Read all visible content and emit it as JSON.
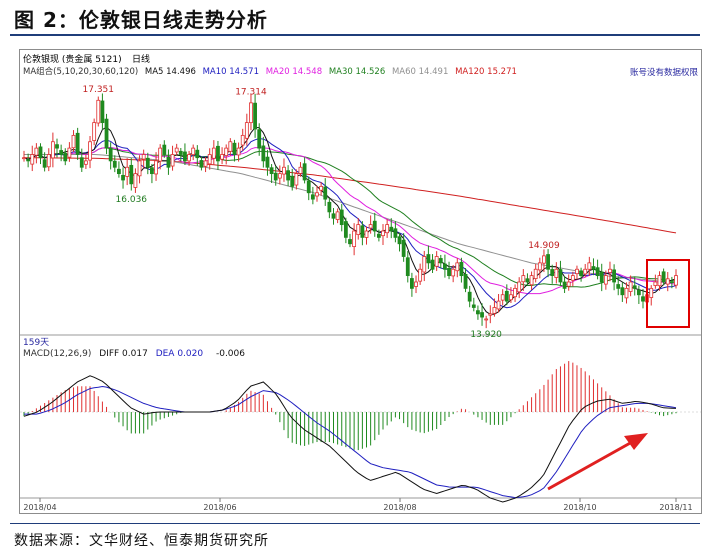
{
  "figure_title": "图 2：伦敦银日线走势分析",
  "source_note": "数据来源：文华财经、恒泰期货研究所",
  "header": {
    "symbol": "伦敦银现 (贵金属 5121)",
    "period": "日线"
  },
  "ma_legend": {
    "group": "MA组合(5,10,20,30,60,120)",
    "ma5": "MA5 14.496",
    "ma10": "MA10 14.571",
    "ma20": "MA20 14.548",
    "ma30": "MA30 14.526",
    "ma60": "MA60 14.491",
    "ma120": "MA120 15.271",
    "notice": "账号没有数据权限"
  },
  "count_label": "159天",
  "macd_legend": {
    "name": "MACD(12,26,9)",
    "diff": "DIFF 0.017",
    "dea": "DEA 0.020",
    "macd": "-0.006"
  },
  "colors": {
    "up": "#e03030",
    "down": "#1f8a1f",
    "ma5": "#111111",
    "ma10": "#2020c0",
    "ma20": "#e020e0",
    "ma30": "#208020",
    "ma60": "#909090",
    "ma120": "#d02020",
    "highlight": "#e00000",
    "arrow": "#e02020"
  },
  "chart_data": {
    "type": "candlestick",
    "x_ticks": [
      "2018/04",
      "2018/06",
      "2018/08",
      "2018/10",
      "2018/11"
    ],
    "annotations": [
      {
        "text": "17.351",
        "value": 17.351
      },
      {
        "text": "17.314",
        "value": 17.314
      },
      {
        "text": "16.036",
        "value": 16.036
      },
      {
        "text": "14.909",
        "value": 14.909
      },
      {
        "text": "13.920",
        "value": 13.92
      }
    ],
    "close_path": [
      16.45,
      16.4,
      16.5,
      16.6,
      16.45,
      16.3,
      16.5,
      16.7,
      16.6,
      16.5,
      16.4,
      16.6,
      16.8,
      16.5,
      16.3,
      16.4,
      16.7,
      17.0,
      17.35,
      17.0,
      16.6,
      16.4,
      16.3,
      16.2,
      16.1,
      16.3,
      16.04,
      16.2,
      16.4,
      16.5,
      16.3,
      16.2,
      16.4,
      16.6,
      16.5,
      16.3,
      16.5,
      16.6,
      16.5,
      16.4,
      16.5,
      16.6,
      16.45,
      16.3,
      16.4,
      16.5,
      16.6,
      16.4,
      16.5,
      16.6,
      16.7,
      16.5,
      16.6,
      16.8,
      17.0,
      17.31,
      16.9,
      16.6,
      16.4,
      16.3,
      16.2,
      16.1,
      16.2,
      16.3,
      16.1,
      16.0,
      16.2,
      16.3,
      16.1,
      15.9,
      15.8,
      15.9,
      16.0,
      15.8,
      15.6,
      15.5,
      15.6,
      15.4,
      15.2,
      15.1,
      15.3,
      15.4,
      15.2,
      15.3,
      15.4,
      15.3,
      15.2,
      15.3,
      15.4,
      15.3,
      15.2,
      15.1,
      14.9,
      14.6,
      14.4,
      14.5,
      14.7,
      14.9,
      14.8,
      14.7,
      14.9,
      14.8,
      14.7,
      14.6,
      14.7,
      14.8,
      14.6,
      14.4,
      14.2,
      14.1,
      14.0,
      13.95,
      13.92,
      14.0,
      14.1,
      14.2,
      14.3,
      14.2,
      14.3,
      14.4,
      14.5,
      14.6,
      14.5,
      14.6,
      14.7,
      14.8,
      14.91,
      14.7,
      14.6,
      14.7,
      14.5,
      14.4,
      14.5,
      14.6,
      14.7,
      14.6,
      14.7,
      14.8,
      14.7,
      14.6,
      14.5,
      14.6,
      14.7,
      14.5,
      14.4,
      14.3,
      14.4,
      14.5,
      14.4,
      14.3,
      14.2,
      14.3,
      14.4,
      14.5,
      14.6,
      14.5,
      14.55,
      14.5,
      14.6
    ],
    "ma120_path": [
      16.45,
      16.44,
      16.4,
      16.3,
      16.18,
      16.02,
      15.85,
      15.66,
      15.47,
      15.27
    ],
    "ma60_path": [
      16.5,
      16.5,
      16.4,
      16.2,
      15.9,
      15.5,
      15.1,
      14.8,
      14.6,
      14.49
    ],
    "macd_diff_path": [
      -0.02,
      0.0,
      0.04,
      0.09,
      0.14,
      0.17,
      0.14,
      0.08,
      0.02,
      -0.01,
      0.0,
      0.0,
      0.0,
      0.0,
      0.0,
      0.01,
      0.05,
      0.12,
      0.14,
      0.08,
      -0.02,
      -0.08,
      -0.12,
      -0.16,
      -0.22,
      -0.28,
      -0.32,
      -0.3,
      -0.28,
      -0.32,
      -0.36,
      -0.38,
      -0.36,
      -0.34,
      -0.36,
      -0.4,
      -0.42,
      -0.4,
      -0.36,
      -0.3,
      -0.18,
      -0.06,
      0.02,
      0.05,
      0.06,
      0.04,
      0.05,
      0.04,
      0.02,
      0.017
    ],
    "macd_dea_path": [
      -0.01,
      -0.01,
      0.01,
      0.04,
      0.08,
      0.11,
      0.12,
      0.1,
      0.07,
      0.04,
      0.02,
      0.01,
      0.0,
      0.0,
      0.0,
      0.01,
      0.03,
      0.07,
      0.1,
      0.09,
      0.05,
      0.0,
      -0.05,
      -0.09,
      -0.14,
      -0.19,
      -0.24,
      -0.26,
      -0.27,
      -0.28,
      -0.31,
      -0.34,
      -0.35,
      -0.35,
      -0.35,
      -0.37,
      -0.39,
      -0.4,
      -0.39,
      -0.36,
      -0.28,
      -0.18,
      -0.08,
      -0.02,
      0.02,
      0.03,
      0.04,
      0.04,
      0.03,
      0.02
    ]
  }
}
